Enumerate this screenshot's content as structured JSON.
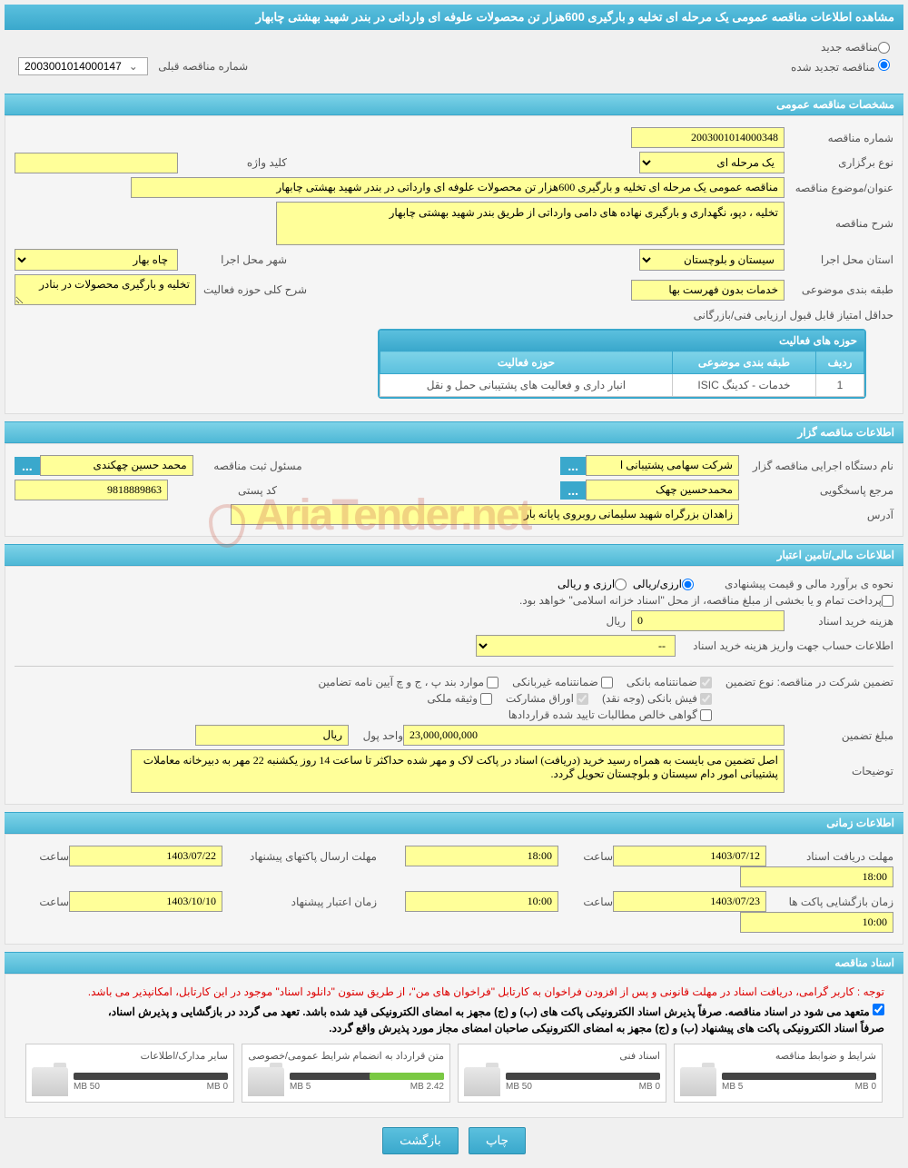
{
  "header_title": "مشاهده اطلاعات مناقصه عمومی یک مرحله ای تخلیه و بارگیری 600هزار تن محصولات علوفه ای وارداتی در بندر شهید بهشتی چابهار",
  "radio": {
    "new_tender": "مناقصه جدید",
    "renewed_tender": "مناقصه تجدید شده",
    "prev_label": "شماره مناقصه قبلی",
    "prev_value": "2003001014000147"
  },
  "sections": {
    "general": "مشخصات مناقصه عمومی",
    "organizer": "اطلاعات مناقصه گزار",
    "financial": "اطلاعات مالی/تامین اعتبار",
    "timing": "اطلاعات زمانی",
    "documents": "اسناد مناقصه"
  },
  "general": {
    "number_label": "شماره مناقصه",
    "number": "2003001014000348",
    "type_label": "نوع برگزاری",
    "type": "یک مرحله ای",
    "keyword_label": "کلید واژه",
    "keyword": "",
    "subject_label": "عنوان/موضوع مناقصه",
    "subject": "مناقصه عمومی یک مرحله ای تخلیه و بارگیری 600هزار تن محصولات علوفه ای وارداتی در بندر شهید بهشتی چابهار",
    "desc_label": "شرح مناقصه",
    "desc": "تخلیه ، دپو، نگهداری و بارگیری نهاده های دامی وارداتی از طریق بندر شهید بهشتی چابهار",
    "province_label": "استان محل اجرا",
    "province": "سیستان و بلوچستان",
    "city_label": "شهر محل اجرا",
    "city": "چاه بهار",
    "category_label": "طبقه بندی موضوعی",
    "category": "خدمات بدون فهرست بها",
    "scope_label": "شرح کلی حوزه فعالیت",
    "scope": "تخلیه و بارگیری محصولات در بنادر",
    "min_score_label": "حداقل امتیاز قابل قبول ارزیابی فنی/بازرگانی"
  },
  "activity_table": {
    "title": "حوزه های فعالیت",
    "col_row": "ردیف",
    "col_category": "طبقه بندی موضوعی",
    "col_activity": "حوزه فعالیت",
    "rows": [
      {
        "n": "1",
        "cat": "خدمات - کدینگ ISIC",
        "act": "انبار داری و فعالیت های پشتیبانی حمل و نقل"
      }
    ]
  },
  "organizer": {
    "device_label": "نام دستگاه اجرایی مناقصه گزار",
    "device": "شرکت سهامی پشتیبانی ا",
    "reg_resp_label": "مسئول ثبت مناقصه",
    "reg_resp": "محمد حسین چهکندی",
    "contact_label": "مرجع پاسخگویی",
    "contact": "محمدحسین چهک",
    "postal_label": "کد پستی",
    "postal": "9818889863",
    "address_label": "آدرس",
    "address": "زاهدان بزرگراه شهید سلیمانی روبروی پایانه بار"
  },
  "financial": {
    "est_label": "نحوه ی برآورد مالی و قیمت پیشنهادی",
    "curr_fx": "ارزی/ریالی",
    "curr_rial": "ارزی و ریالی",
    "treasury_note": "پرداخت تمام و یا بخشی از مبلغ مناقصه، از محل \"اسناد خزانه اسلامی\" خواهد بود.",
    "doc_cost_label": "هزینه خرید اسناد",
    "doc_cost": "0",
    "rial_unit": "ریال",
    "account_label": "اطلاعات حساب جهت واریز هزینه خرید اسناد",
    "account": "--",
    "guarantee_type_label": "تضمین شرکت در مناقصه:   نوع تضمین",
    "chk_bank_guarantee": "ضمانتنامه بانکی",
    "chk_nonbank": "ضمانتنامه غیربانکی",
    "chk_bylaw": "موارد بند پ ، ج و چ آیین نامه تضامین",
    "chk_cash": "فیش بانکی (وجه نقد)",
    "chk_securities": "اوراق مشارکت",
    "chk_property": "وثیقه ملکی",
    "chk_receivables": "گواهی خالص مطالبات تایید شده قراردادها",
    "amount_label": "مبلغ تضمین",
    "amount": "23,000,000,000",
    "unit_label": "واحد پول",
    "unit": "ریال",
    "notes_label": "توضیحات",
    "notes": "اصل تضمین می بایست به همراه رسید خرید (دریافت) اسناد در پاکت لاک و مهر شده حداکثر تا ساعت 14 روز یکشنبه 22 مهر به دبیرخانه معاملات پشتیبانی امور دام سیستان و بلوچستان تحویل گردد."
  },
  "timing": {
    "receive_label": "مهلت دریافت اسناد",
    "receive_date": "1403/07/12",
    "time_label": "ساعت",
    "receive_time": "18:00",
    "send_label": "مهلت ارسال پاکتهای پیشنهاد",
    "send_date": "1403/07/22",
    "send_time": "18:00",
    "open_label": "زمان بازگشایی پاکت ها",
    "open_date": "1403/07/23",
    "open_time": "10:00",
    "validity_label": "زمان اعتبار پیشنهاد",
    "validity_date": "1403/10/10",
    "validity_time": "10:00"
  },
  "docs": {
    "note1": "توجه : کاربر گرامی، دریافت اسناد در مهلت قانونی و پس از افزودن فراخوان به کارتابل \"فراخوان های من\"، از طریق ستون \"دانلود اسناد\" موجود در این کارتابل، امکانپذیر می باشد.",
    "note2": "متعهد می شود در اسناد مناقصه. صرفاً پذیرش اسناد الکترونیکی پاکت های (ب) و (ج) مجهز به امضای الکترونیکی قید شده باشد. تعهد می گردد در بازگشایی و پذیرش اسناد،",
    "note3": "صرفاً اسناد الکترونیکی پاکت های پیشنهاد (ب) و (ج) مجهز به امضای الکترونیکی صاحبان امضای مجاز مورد پذیرش واقع گردد.",
    "cards": [
      {
        "title": "شرایط و ضوابط مناقصه",
        "used": "0 MB",
        "max": "5 MB",
        "pct": 0
      },
      {
        "title": "اسناد فنی",
        "used": "0 MB",
        "max": "50 MB",
        "pct": 0
      },
      {
        "title": "متن قرارداد به انضمام شرایط عمومی/خصوصی",
        "used": "2.42 MB",
        "max": "5 MB",
        "pct": 48
      },
      {
        "title": "سایر مدارک/اطلاعات",
        "used": "0 MB",
        "max": "50 MB",
        "pct": 0
      }
    ]
  },
  "buttons": {
    "print": "چاپ",
    "back": "بازگشت"
  },
  "watermark": "AriaTender.net",
  "three_dots": "..."
}
